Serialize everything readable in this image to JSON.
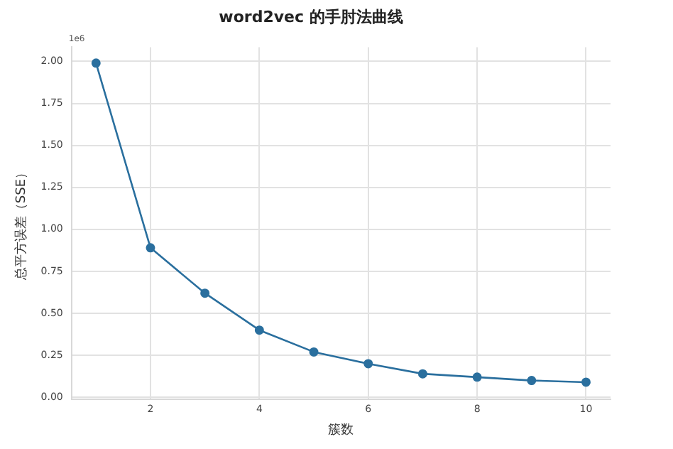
{
  "chart_data": {
    "type": "line",
    "title": "word2vec 的手肘法曲线",
    "xlabel": "簇数",
    "ylabel": "总平方误差（SSE）",
    "x": [
      1,
      2,
      3,
      4,
      5,
      6,
      7,
      8,
      9,
      10
    ],
    "series": [
      {
        "color": "#2a6f9e",
        "values": [
          1.99,
          0.89,
          0.62,
          0.4,
          0.27,
          0.2,
          0.14,
          0.12,
          0.1,
          0.09
        ]
      }
    ],
    "xlim": [
      0.55,
      10.45
    ],
    "xticks": [
      2,
      4,
      6,
      8,
      10
    ],
    "ylim": [
      -0.01,
      2.085
    ],
    "yticks": [
      {
        "value": 0,
        "label": "0.00"
      },
      {
        "value": 0.25,
        "label": "0.25"
      },
      {
        "value": 0.5,
        "label": "0.50"
      },
      {
        "value": 0.75,
        "label": "0.75"
      },
      {
        "value": 1,
        "label": "1.00"
      },
      {
        "value": 1.25,
        "label": "1.25"
      },
      {
        "value": 1.5,
        "label": "1.50"
      },
      {
        "value": 1.75,
        "label": "1.75"
      },
      {
        "value": 2,
        "label": "2.00"
      }
    ],
    "annotations": [
      "1e6"
    ],
    "grid": true,
    "marker": "circle",
    "line_style": "solid",
    "legend": false
  }
}
